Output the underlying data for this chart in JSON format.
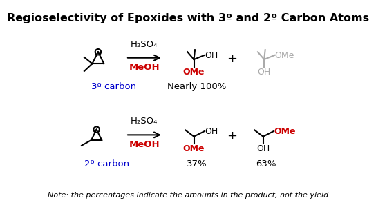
{
  "title": "Regioselectivity of Epoxides with 3º and 2º Carbon Atoms",
  "title_fontsize": 11.5,
  "bg_color": "#ffffff",
  "note_text": "Note: the percentages indicate the amounts in the product, not the yield",
  "label_3deg": "3º carbon",
  "label_2deg": "2º carbon",
  "nearly100": "Nearly 100%",
  "pct37": "37%",
  "pct63": "63%",
  "red_color": "#cc0000",
  "blue_color": "#0000cc",
  "black_color": "#000000",
  "gray_color": "#aaaaaa"
}
